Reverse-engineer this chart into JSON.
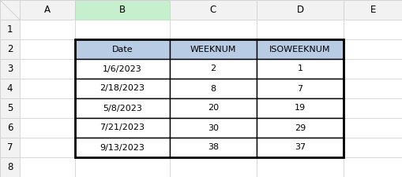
{
  "col_labels": [
    "A",
    "B",
    "C",
    "D",
    "E"
  ],
  "row_labels": [
    "1",
    "2",
    "3",
    "4",
    "5",
    "6",
    "7",
    "8"
  ],
  "header_row": [
    "Date",
    "WEEKNUM",
    "ISOWEEKNUM"
  ],
  "table_data": [
    [
      "1/6/2023",
      "2",
      "1"
    ],
    [
      "2/18/2023",
      "8",
      "7"
    ],
    [
      "5/8/2023",
      "20",
      "19"
    ],
    [
      "7/21/2023",
      "30",
      "29"
    ],
    [
      "9/13/2023",
      "38",
      "37"
    ]
  ],
  "col_B_selected_bg": "#c6efce",
  "header_row_bg": "#b8cce4",
  "table_bg": "#ffffff",
  "grid_color": "#c8c8c8",
  "border_color": "#000000",
  "text_color": "#000000",
  "sheet_bg": "#f2f2f2",
  "col_header_bg": "#e8e8e8",
  "row_num_bg": "#f2f2f2",
  "font_size": 8.0
}
